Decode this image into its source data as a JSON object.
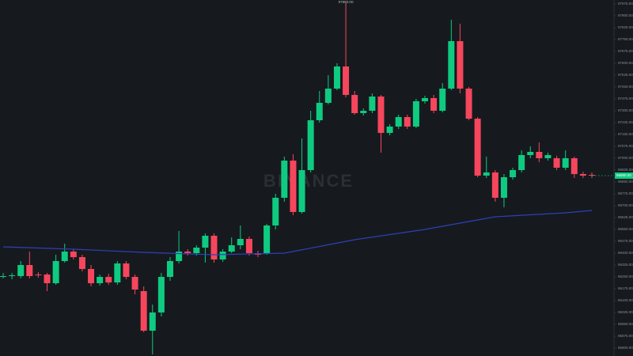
{
  "chart_data": {
    "type": "candlestick",
    "watermark": "BINANCE",
    "up_color": "#0ecb81",
    "down_color": "#f6465d",
    "open": [
      96255,
      96255,
      96255,
      96325,
      96265,
      96265,
      96210,
      96350,
      96410,
      96375,
      96300,
      96210,
      96250,
      96215,
      96335,
      96250,
      96160,
      95910,
      96025,
      96250,
      96350,
      96410,
      96400,
      96435,
      96510,
      96360,
      96410,
      96450,
      96490,
      96400,
      96400,
      96575,
      96750,
      96985,
      96660,
      96925,
      97240,
      97350,
      97440,
      97580,
      97400,
      97285,
      97300,
      97390,
      97160,
      97200,
      97260,
      97200,
      97360,
      97380,
      97300,
      97440,
      97740,
      97440,
      97250,
      96890,
      96910,
      96750,
      96880,
      96925,
      97020,
      97040,
      97000,
      97000,
      96940,
      97000,
      96900,
      96895
    ],
    "high": [
      96275,
      96275,
      96350,
      96410,
      96280,
      96275,
      96390,
      96460,
      96425,
      96390,
      96325,
      96265,
      96270,
      96350,
      96350,
      96265,
      96190,
      96075,
      96275,
      96375,
      96540,
      96425,
      96450,
      96525,
      96525,
      96425,
      96500,
      96575,
      96505,
      96415,
      96585,
      96775,
      97010,
      97025,
      97125,
      97300,
      97425,
      97525,
      97600,
      97980,
      97425,
      97315,
      97410,
      97400,
      97215,
      97275,
      97275,
      97375,
      97395,
      97400,
      97475,
      97875,
      97850,
      97450,
      97260,
      97010,
      96925,
      96900,
      96940,
      97050,
      97075,
      97100,
      97035,
      97015,
      97050,
      97010,
      96915,
      96910
    ],
    "low": [
      96240,
      96235,
      96240,
      96240,
      96245,
      96160,
      96200,
      96340,
      96360,
      96285,
      96190,
      96195,
      96200,
      96200,
      96235,
      96140,
      95900,
      95760,
      96000,
      96225,
      96335,
      96385,
      96385,
      96340,
      96340,
      96345,
      96400,
      96425,
      96385,
      96375,
      96390,
      96550,
      96725,
      96640,
      96650,
      96910,
      97225,
      97340,
      97430,
      97385,
      97275,
      97270,
      97285,
      97035,
      97145,
      97185,
      97185,
      97190,
      97345,
      97285,
      97290,
      97430,
      97410,
      97240,
      96880,
      96875,
      96725,
      96690,
      96865,
      96910,
      97000,
      96975,
      96985,
      96925,
      96925,
      96875,
      96875,
      96875
    ],
    "close": [
      96255,
      96260,
      96325,
      96255,
      96260,
      96210,
      96350,
      96410,
      96375,
      96300,
      96210,
      96250,
      96215,
      96335,
      96250,
      96170,
      95910,
      96025,
      96250,
      96350,
      96410,
      96400,
      96435,
      96510,
      96360,
      96410,
      96450,
      96490,
      96400,
      96390,
      96575,
      96750,
      96985,
      96660,
      96925,
      97240,
      97350,
      97440,
      97580,
      97400,
      97285,
      97300,
      97390,
      97160,
      97200,
      97260,
      97200,
      97360,
      97380,
      97300,
      97440,
      97740,
      97440,
      97250,
      96890,
      96910,
      96750,
      96880,
      96925,
      97020,
      97040,
      97000,
      97020,
      96940,
      97000,
      96900,
      96890,
      96890
    ],
    "ma": {
      "color": "#2f3fb8",
      "x": [
        0,
        8,
        16,
        24,
        32,
        40,
        48,
        56,
        64,
        67
      ],
      "values": [
        96440,
        96425,
        96405,
        96390,
        96400,
        96485,
        96550,
        96630,
        96655,
        96670
      ]
    },
    "ylim": [
      95750,
      98000
    ],
    "yticks": [
      {
        "value": 97975,
        "label": "97975.00"
      },
      {
        "value": 97900,
        "label": "97900.00"
      },
      {
        "value": 97825,
        "label": "97825.00"
      },
      {
        "value": 97750,
        "label": "97750.00"
      },
      {
        "value": 97675,
        "label": "97675.00"
      },
      {
        "value": 97600,
        "label": "97600.00"
      },
      {
        "value": 97525,
        "label": "97525.00"
      },
      {
        "value": 97450,
        "label": "97450.00"
      },
      {
        "value": 97375,
        "label": "97375.00"
      },
      {
        "value": 97300,
        "label": "97300.00"
      },
      {
        "value": 97225,
        "label": "97225.00"
      },
      {
        "value": 97150,
        "label": "97150.00"
      },
      {
        "value": 97075,
        "label": "97075.00"
      },
      {
        "value": 97000,
        "label": "97000.00"
      },
      {
        "value": 96925,
        "label": "96925.00"
      },
      {
        "value": 96850,
        "label": "96850.00"
      },
      {
        "value": 96775,
        "label": "96775.00"
      },
      {
        "value": 96700,
        "label": "96700.00"
      },
      {
        "value": 96625,
        "label": "96625.00"
      },
      {
        "value": 96550,
        "label": "96550.00"
      },
      {
        "value": 96475,
        "label": "96475.00"
      },
      {
        "value": 96400,
        "label": "96400.00"
      },
      {
        "value": 96325,
        "label": "96325.00"
      },
      {
        "value": 96250,
        "label": "96250.00"
      },
      {
        "value": 96175,
        "label": "96175.00"
      },
      {
        "value": 96100,
        "label": "96100.00"
      },
      {
        "value": 96025,
        "label": "96025.00"
      },
      {
        "value": 95950,
        "label": "95950.00"
      },
      {
        "value": 95875,
        "label": "95875.00"
      },
      {
        "value": 95800,
        "label": "95800.00"
      }
    ],
    "last_price": {
      "value": 96890,
      "label": "96890.00"
    },
    "high_annotation": {
      "value": 97980,
      "label": "97980.00"
    }
  }
}
